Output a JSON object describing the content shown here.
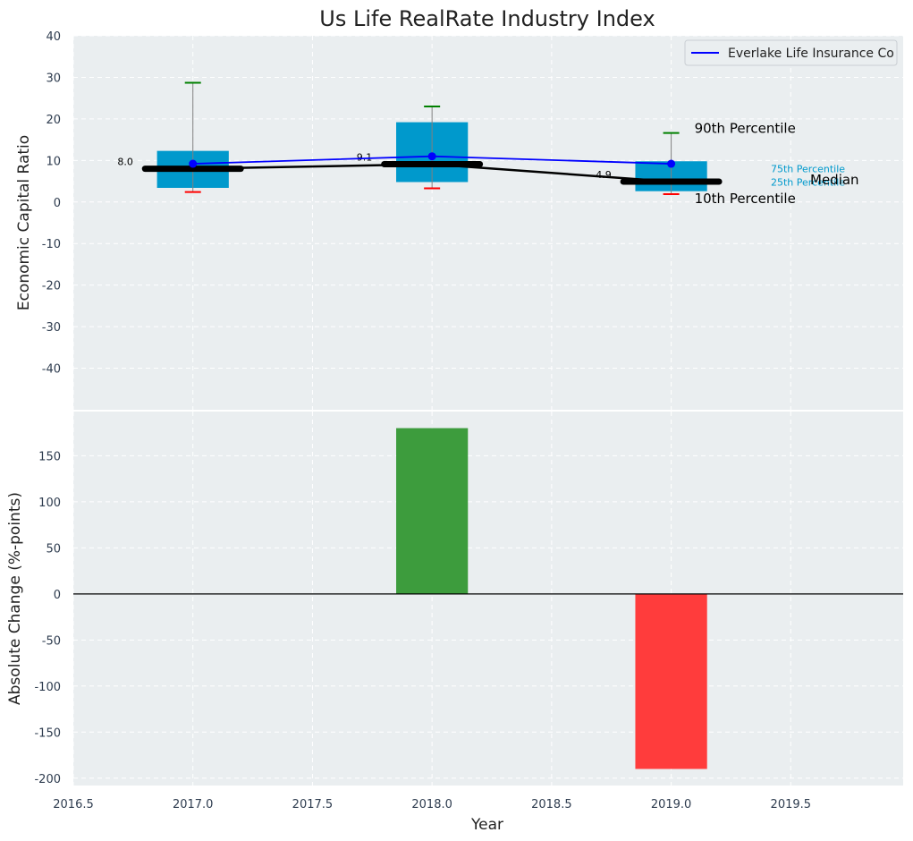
{
  "chart_data": [
    {
      "type": "box",
      "title": "Us Life RealRate Industry Index",
      "ylabel": "Economic Capital Ratio",
      "ylim": [
        -50,
        40
      ],
      "yticks": [
        40,
        30,
        20,
        10,
        0,
        -10,
        -20,
        -30,
        -40
      ],
      "xlim": [
        2016.5,
        2019.97
      ],
      "x": [
        2017,
        2018,
        2019
      ],
      "p10": [
        2.4,
        3.3,
        1.9
      ],
      "p25": [
        3.4,
        4.8,
        2.6
      ],
      "median": [
        8.0,
        9.1,
        4.9
      ],
      "p75": [
        12.3,
        19.2,
        9.8
      ],
      "p90": [
        28.7,
        23.0,
        16.6
      ],
      "median_labels": [
        "8.0",
        "9.1",
        "4.9"
      ],
      "company": {
        "name": "Everlake Life Insurance Co",
        "values": [
          9.2,
          11.0,
          9.2
        ]
      },
      "legend": {
        "position": "top-right",
        "label": "Everlake Life Insurance Co"
      },
      "annotations": {
        "p90": "90th Percentile",
        "p75": "75th Percentile",
        "median": "Median",
        "p25": "25th Percentile",
        "p10": "10th Percentile"
      },
      "grid": true,
      "colors": {
        "box": "#0099cc",
        "company": "#0000ff",
        "median": "#000000",
        "whisker": "#808080",
        "cap_high": "#008000",
        "cap_low": "#ff0000",
        "background": "#eaeef0"
      }
    },
    {
      "type": "bar",
      "ylabel": "Absolute Change (%-points)",
      "xlabel": "Year",
      "ylim": [
        -208,
        198
      ],
      "yticks": [
        150,
        100,
        50,
        0,
        -50,
        -100,
        -150,
        -200
      ],
      "xticks": [
        "2016.5",
        "2017.0",
        "2017.5",
        "2018.0",
        "2018.5",
        "2019.0",
        "2019.5"
      ],
      "xtick_values": [
        2016.5,
        2017.0,
        2017.5,
        2018.0,
        2018.5,
        2019.0,
        2019.5
      ],
      "x": [
        2018,
        2019
      ],
      "values": [
        180,
        -190
      ],
      "grid": true,
      "colors": {
        "positive": "#3d9c3d",
        "negative": "#ff3c3c",
        "zero_line": "#000000"
      }
    }
  ]
}
